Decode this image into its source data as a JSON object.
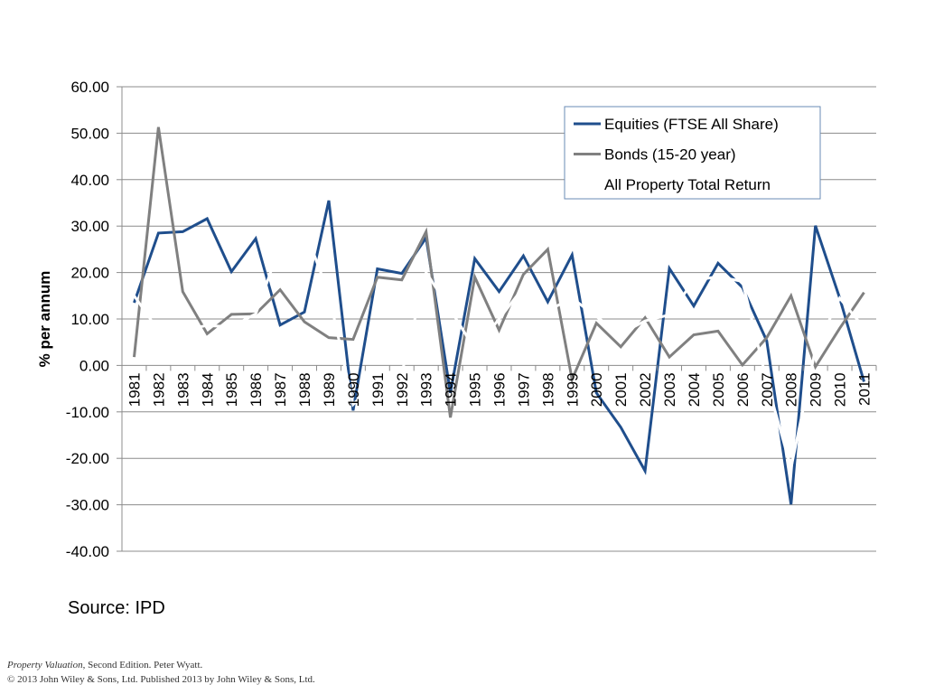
{
  "chart_data": {
    "type": "line",
    "ylabel": "% per annum",
    "xlabel": "",
    "ylim": [
      -40,
      60
    ],
    "yticks": [
      "60.00",
      "50.00",
      "40.00",
      "30.00",
      "20.00",
      "10.00",
      "0.00",
      "-10.00",
      "-20.00",
      "-30.00",
      "-40.00"
    ],
    "ytick_values": [
      60,
      50,
      40,
      30,
      20,
      10,
      0,
      -10,
      -20,
      -30,
      -40
    ],
    "grid": true,
    "legend_position": "top-right",
    "categories": [
      "1981",
      "1982",
      "1983",
      "1984",
      "1985",
      "1986",
      "1987",
      "1988",
      "1989",
      "1990",
      "1991",
      "1992",
      "1993",
      "1994",
      "1995",
      "1996",
      "1997",
      "1998",
      "1999",
      "2000",
      "2001",
      "2002",
      "2003",
      "2004",
      "2005",
      "2006",
      "2007",
      "2008",
      "2009",
      "2010",
      "2011"
    ],
    "series": [
      {
        "name": "Equities (FTSE All Share)",
        "color": "#1F4E8C",
        "values": [
          13.5,
          28.5,
          28.8,
          31.6,
          20.2,
          27.3,
          8.7,
          11.5,
          35.5,
          -9.7,
          20.8,
          19.8,
          27.5,
          -5.9,
          23.0,
          15.9,
          23.6,
          13.7,
          23.8,
          -5.9,
          -13.3,
          -22.7,
          20.9,
          12.8,
          22.0,
          16.8,
          5.3,
          -29.9,
          30.1,
          14.5,
          -3.5
        ]
      },
      {
        "name": "Bonds (15-20 year)",
        "color": "#808080",
        "values": [
          1.8,
          51.3,
          15.9,
          6.8,
          11.0,
          11.1,
          16.3,
          9.4,
          6.0,
          5.6,
          19.0,
          18.4,
          28.8,
          -11.2,
          19.0,
          7.6,
          19.6,
          25.0,
          -3.0,
          9.1,
          4.0,
          10.3,
          1.8,
          6.6,
          7.4,
          0.1,
          6.0,
          15.0,
          -0.3,
          8.0,
          15.7
        ]
      },
      {
        "name": "All Property Total Return",
        "color": "#ffffff",
        "values": [
          15.0,
          7.5,
          7.6,
          8.6,
          8.3,
          11.1,
          25.8,
          29.4,
          15.4,
          -8.4,
          -3.2,
          -1.7,
          20.0,
          12.0,
          3.5,
          10.0,
          16.8,
          11.8,
          14.5,
          10.5,
          6.8,
          9.6,
          10.9,
          18.3,
          19.1,
          18.1,
          -3.4,
          -22.1,
          3.5,
          14.5,
          8.1
        ]
      }
    ]
  },
  "source_text": "Source: IPD",
  "footer": {
    "book_title": "Property Valuation",
    "line1_rest": ", Second Edition. Peter Wyatt.",
    "line2": "© 2013 John Wiley & Sons, Ltd. Published 2013 by John Wiley & Sons, Ltd."
  }
}
